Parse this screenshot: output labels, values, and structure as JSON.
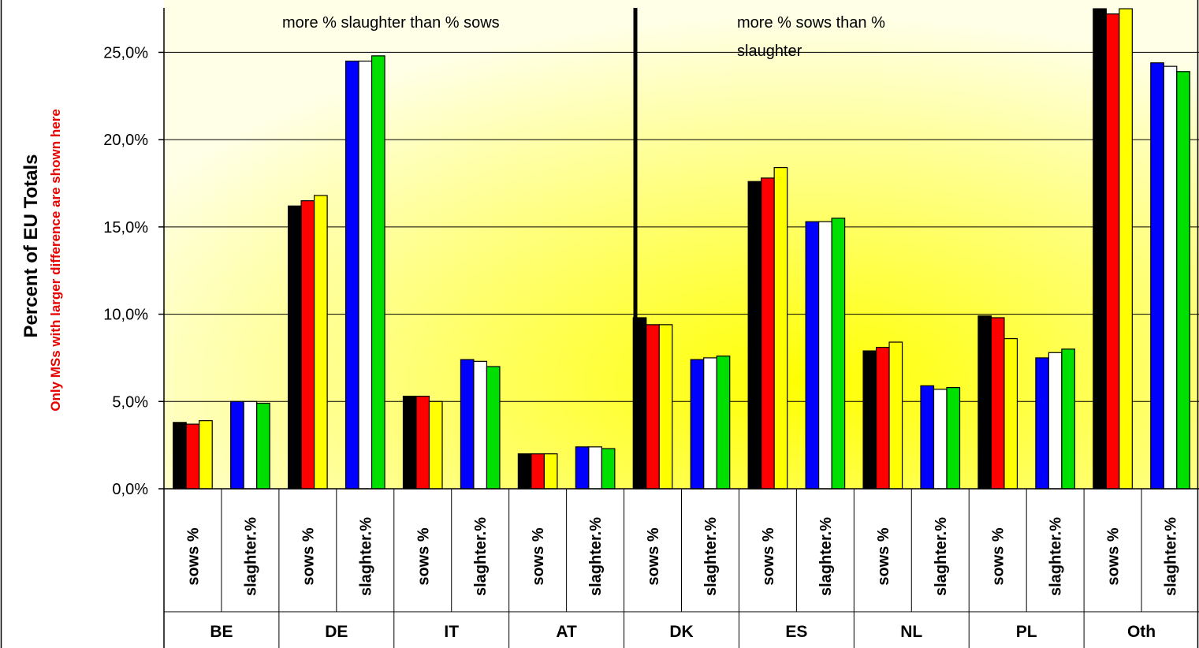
{
  "chart_data": {
    "type": "bar",
    "ylabel": "Percent of EU Totals",
    "ylabel_note": "Only MSs with larger difference are shown here",
    "ylim": [
      0,
      0.28
    ],
    "yticks": [
      "0,0%",
      "5,0%",
      "10,0%",
      "15,0%",
      "20,0%",
      "25,0%"
    ],
    "yticks_values": [
      0,
      0.05,
      0.1,
      0.15,
      0.2,
      0.25
    ],
    "grid": true,
    "background": "yellow radial gradient",
    "groups": [
      "BE",
      "DE",
      "IT",
      "AT",
      "DK",
      "ES",
      "NL",
      "PL",
      "Oth"
    ],
    "subcategories": [
      "sows %",
      "slaghter.%"
    ],
    "divider_after_group": "AT",
    "annotations": [
      "more % slaughter than %  sows",
      "more % sows than %",
      "slaughter"
    ],
    "colors": {
      "sows": [
        "#000000",
        "#ff0000",
        "#ffff00"
      ],
      "slaughter": [
        "#0000ff",
        "#ffffff",
        "#00e000"
      ]
    },
    "series_values": {
      "sows": [
        [
          0.038,
          0.037,
          0.039
        ],
        [
          0.162,
          0.165,
          0.168
        ],
        [
          0.053,
          0.053,
          0.05
        ],
        [
          0.02,
          0.02,
          0.02
        ],
        [
          0.098,
          0.094,
          0.094
        ],
        [
          0.176,
          0.178,
          0.184
        ],
        [
          0.079,
          0.081,
          0.084
        ],
        [
          0.099,
          0.098,
          0.086
        ],
        [
          0.275,
          0.272,
          0.275
        ]
      ],
      "slaughter": [
        [
          0.05,
          0.05,
          0.049
        ],
        [
          0.245,
          0.245,
          0.248
        ],
        [
          0.074,
          0.073,
          0.07
        ],
        [
          0.024,
          0.024,
          0.023
        ],
        [
          0.074,
          0.075,
          0.076
        ],
        [
          0.153,
          0.153,
          0.155
        ],
        [
          0.059,
          0.057,
          0.058
        ],
        [
          0.075,
          0.078,
          0.08
        ],
        [
          0.244,
          0.242,
          0.239
        ]
      ]
    }
  }
}
